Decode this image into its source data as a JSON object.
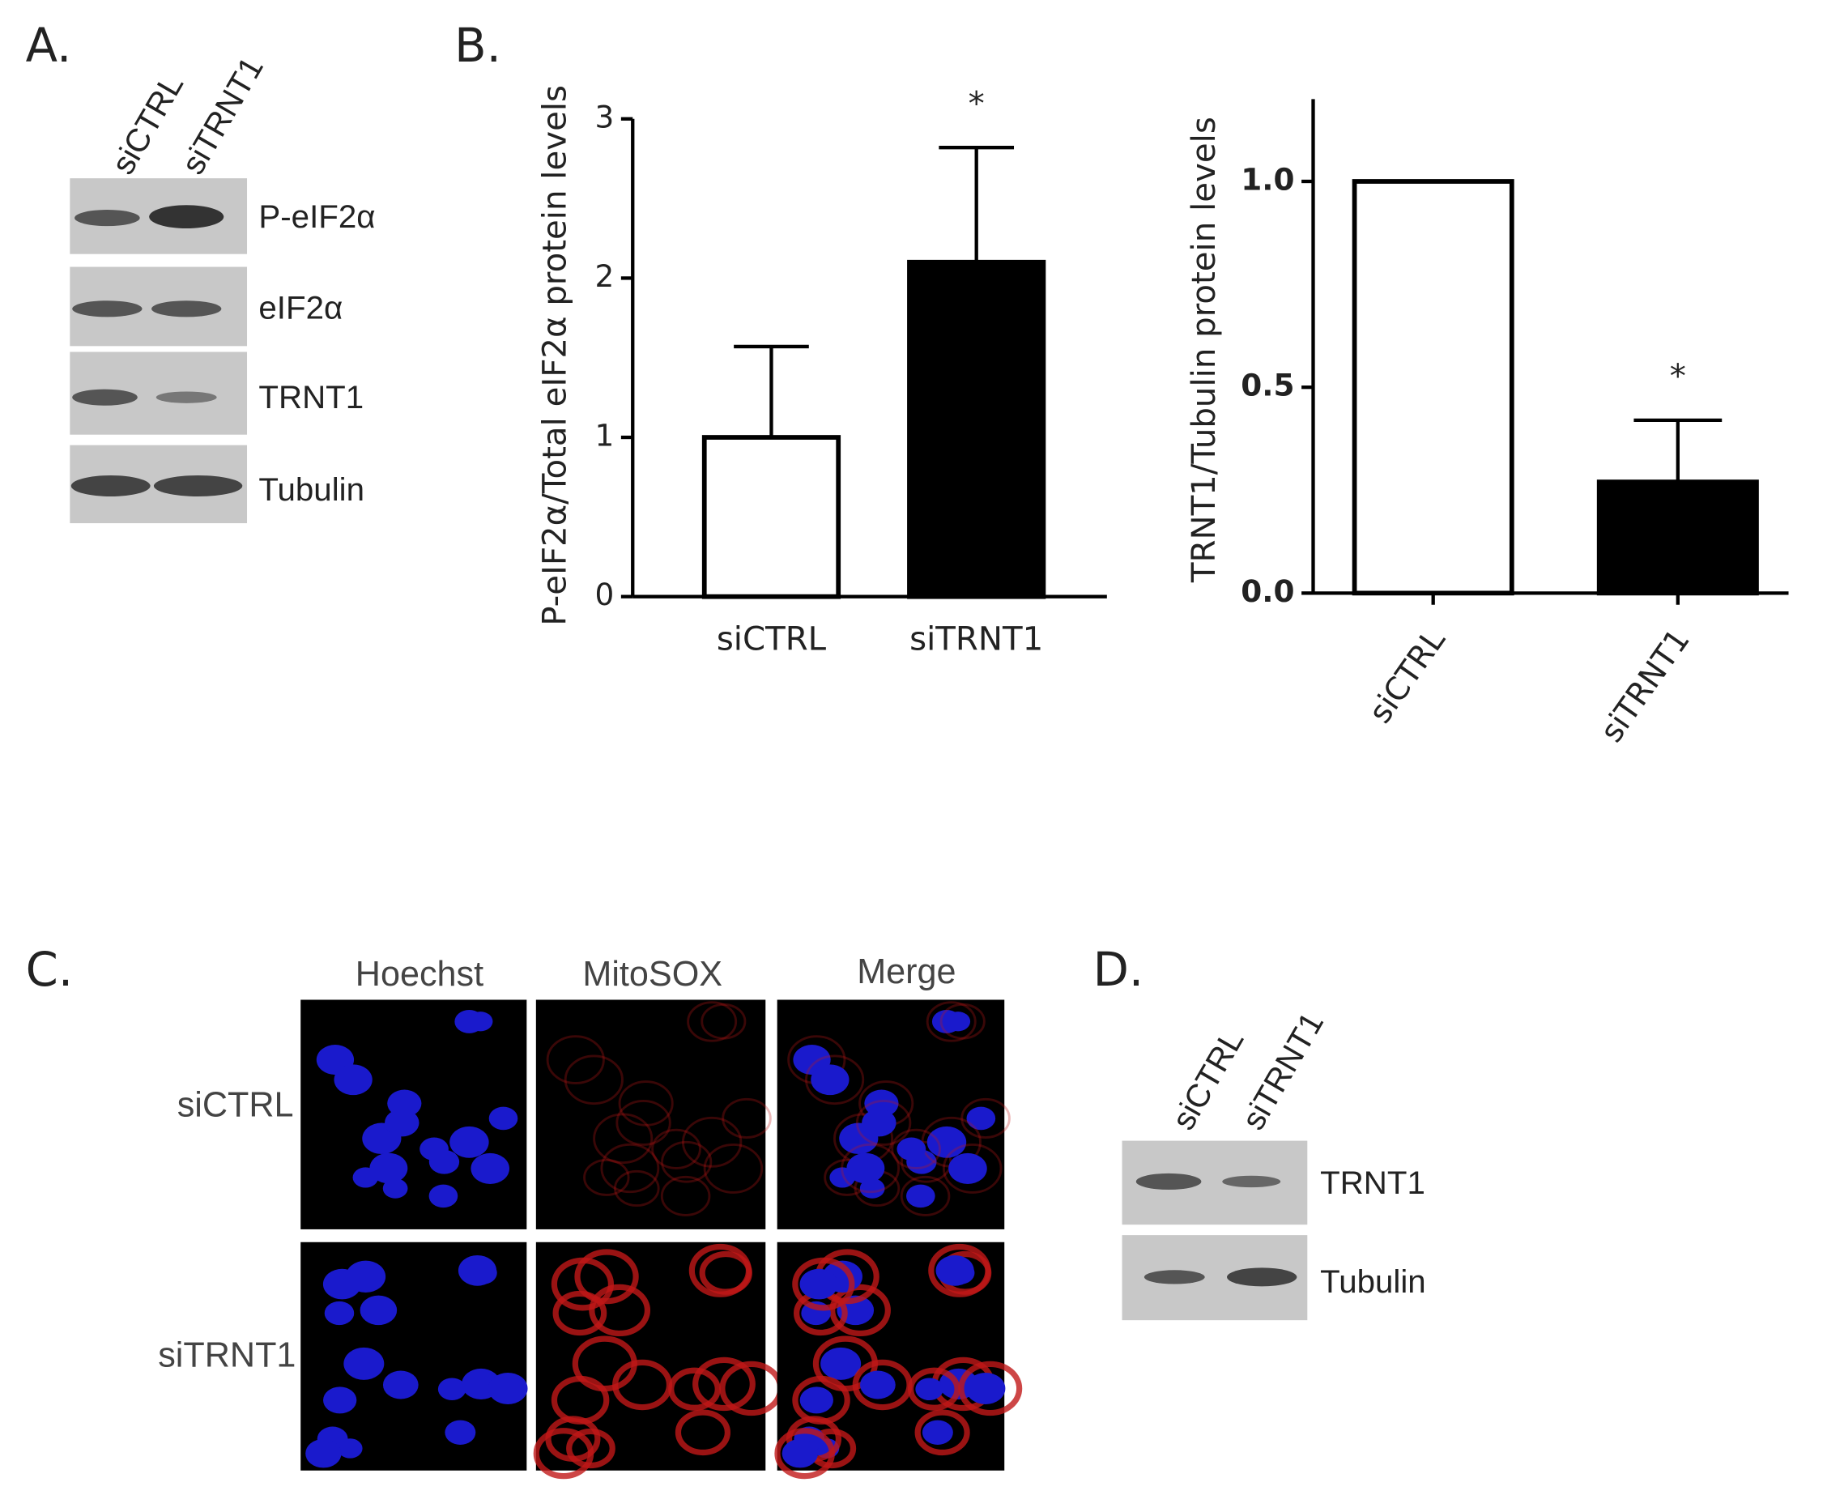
{
  "panel_labels": [
    "A.",
    "B.",
    "C.",
    "D."
  ],
  "blot_a": {
    "lanes": [
      "siCTRL",
      "siTRNT1"
    ],
    "bands": [
      "P-eIF2α",
      "eIF2α",
      "TRNT1",
      "Tubulin"
    ]
  },
  "chart_data": [
    {
      "type": "bar",
      "y_label": "P-eIF2α/Total eIF2α protein levels",
      "categories": [
        "siCTRL",
        "siTRNT1"
      ],
      "values": [
        1.0,
        2.1
      ],
      "errors": [
        0.57,
        0.72
      ],
      "colors": [
        "#ffffff",
        "#000000"
      ],
      "ylim": [
        0,
        3
      ],
      "yticks": [
        0,
        1,
        2,
        3
      ],
      "annotations": [
        {
          "label": "*",
          "x": "siTRNT1"
        }
      ]
    },
    {
      "type": "bar",
      "y_label": "TRNT1/Tubulin protein levels",
      "categories": [
        "siCTRL",
        "siTRNT1"
      ],
      "values": [
        1.0,
        0.27
      ],
      "errors": [
        0,
        0.15
      ],
      "colors": [
        "#ffffff",
        "#000000"
      ],
      "ylim": [
        0,
        1.2
      ],
      "yticks": [
        {
          "value": 0,
          "label": "0.0"
        },
        {
          "value": 0.5,
          "label": "0.5"
        },
        {
          "value": 1,
          "label": "1.0"
        }
      ],
      "annotations": [
        {
          "label": "*",
          "x": "siTRNT1"
        }
      ]
    }
  ],
  "imaging_c": {
    "columns": [
      "Hoechst",
      "MitoSOX",
      "Merge"
    ],
    "rows": [
      "siCTRL",
      "siTRNT1"
    ]
  },
  "blot_d": {
    "lanes": [
      "siCTRL",
      "siTRNT1"
    ],
    "bands": [
      "TRNT1",
      "Tubulin"
    ]
  }
}
